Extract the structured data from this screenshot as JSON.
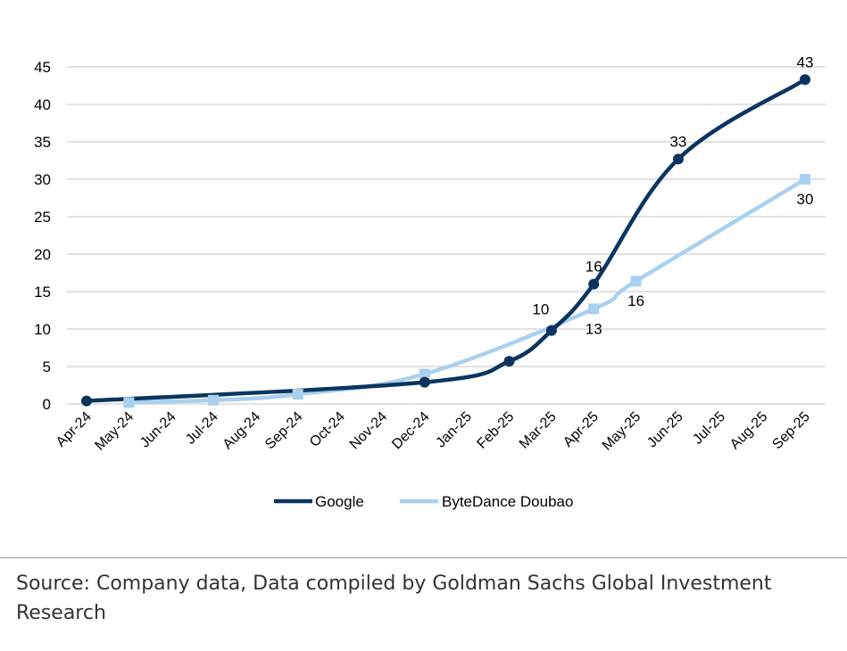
{
  "chart_data": {
    "type": "line",
    "title": "",
    "xlabel": "",
    "ylabel": "",
    "categories": [
      "Apr-24",
      "May-24",
      "Jun-24",
      "Jul-24",
      "Aug-24",
      "Sep-24",
      "Oct-24",
      "Nov-24",
      "Dec-24",
      "Jan-25",
      "Feb-25",
      "Mar-25",
      "Apr-25",
      "May-25",
      "Jun-25",
      "Jul-25",
      "Aug-25",
      "Sep-25"
    ],
    "ylim": [
      0,
      45
    ],
    "yticks": [
      0,
      5,
      10,
      15,
      20,
      25,
      30,
      35,
      40,
      45
    ],
    "grid": true,
    "legend_position": "bottom",
    "series": [
      {
        "name": "Google",
        "color": "#0b3560",
        "points": [
          [
            0,
            0.4
          ],
          [
            8,
            2.9
          ],
          [
            10,
            5.7
          ],
          [
            11,
            9.8
          ],
          [
            12,
            16
          ],
          [
            14,
            32.7
          ],
          [
            17,
            43.3
          ]
        ],
        "labels": [
          null,
          null,
          null,
          "10",
          "16",
          "33",
          "43"
        ]
      },
      {
        "name": "ByteDance Doubao",
        "color": "#a9d0ef",
        "points": [
          [
            1,
            0.2
          ],
          [
            3,
            0.5
          ],
          [
            5,
            1.3
          ],
          [
            8,
            4.0
          ],
          [
            12,
            12.7
          ],
          [
            13,
            16.4
          ],
          [
            17,
            30
          ]
        ],
        "labels": [
          null,
          null,
          null,
          null,
          "13",
          "16",
          "30"
        ]
      }
    ]
  },
  "source": "Source: Company data, Data compiled by Goldman Sachs Global Investment Research"
}
